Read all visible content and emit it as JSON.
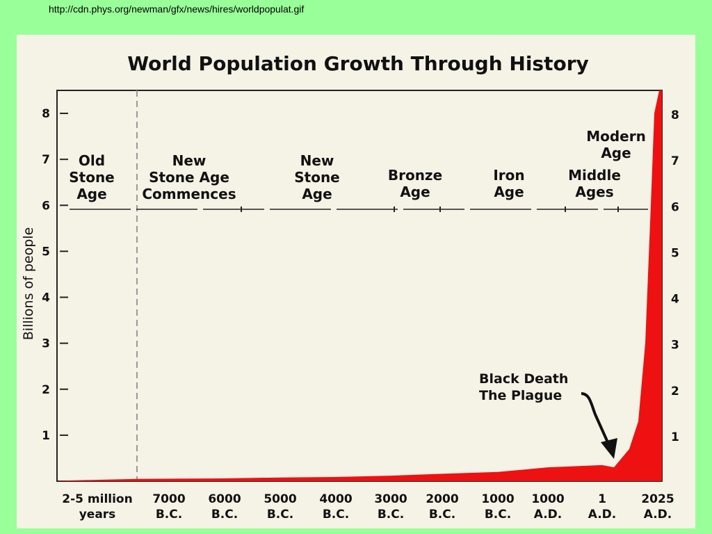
{
  "header": {
    "url_text": "http://cdn.phys.org/newman/gfx/news/hires/worldpopulat.gif"
  },
  "colors": {
    "page_background": "#99ff99",
    "panel_background": "#f5f2e6",
    "fill": "#ee1111",
    "text": "#111111"
  },
  "chart_data": {
    "type": "area",
    "title": "World Population Growth Through History",
    "ylabel": "Billions of people",
    "xlabel": "",
    "ylim": [
      0,
      8.5
    ],
    "yticks": [
      1,
      2,
      3,
      4,
      5,
      6,
      7,
      8
    ],
    "x_tick_labels": [
      [
        "2-5 million",
        "years"
      ],
      [
        "7000",
        "B.C."
      ],
      [
        "6000",
        "B.C."
      ],
      [
        "5000",
        "B.C."
      ],
      [
        "4000",
        "B.C."
      ],
      [
        "3000",
        "B.C."
      ],
      [
        "2000",
        "B.C."
      ],
      [
        "1000",
        "B.C."
      ],
      [
        "1000",
        "A.D."
      ],
      [
        "1",
        "A.D."
      ],
      [
        "2025",
        "A.D."
      ]
    ],
    "eras": [
      {
        "label": [
          "Old",
          "Stone",
          "Age"
        ]
      },
      {
        "label": [
          "New",
          "Stone Age",
          "Commences"
        ]
      },
      {
        "label": [
          "New",
          "Stone",
          "Age"
        ]
      },
      {
        "label": [
          "Bronze",
          "Age"
        ]
      },
      {
        "label": [
          "Iron",
          "Age"
        ]
      },
      {
        "label": [
          "Middle",
          "Ages"
        ]
      },
      {
        "label": [
          "Modern",
          "Age"
        ]
      }
    ],
    "annotation": {
      "text": [
        "Black Death",
        "The Plague"
      ]
    },
    "series": [
      {
        "values": [
          {
            "x": "2-5 million years",
            "y": 0.01
          },
          {
            "x": "7000 B.C.",
            "y": 0.05
          },
          {
            "x": "6000 B.C.",
            "y": 0.06
          },
          {
            "x": "5000 B.C.",
            "y": 0.08
          },
          {
            "x": "4000 B.C.",
            "y": 0.09
          },
          {
            "x": "3000 B.C.",
            "y": 0.12
          },
          {
            "x": "2000 B.C.",
            "y": 0.16
          },
          {
            "x": "1000 B.C.",
            "y": 0.2
          },
          {
            "x": "1000 A.D.",
            "y": 0.3
          },
          {
            "x": "1 A.D.",
            "y": 0.35
          },
          {
            "x": "Black Death",
            "y": 0.3
          },
          {
            "x": "2025 A.D.",
            "y": 8.5
          }
        ]
      }
    ]
  }
}
